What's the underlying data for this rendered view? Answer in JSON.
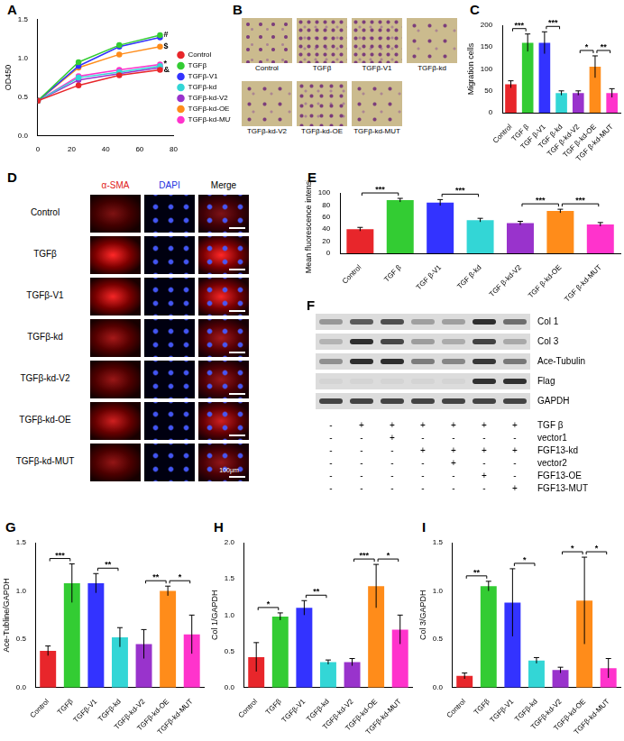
{
  "chart_data": [
    {
      "label": "A",
      "type": "line",
      "y_label": "OD450",
      "x": [
        0,
        24,
        48,
        72
      ],
      "xlim": [
        0,
        80
      ],
      "xticks": [
        0,
        20,
        40,
        60,
        80
      ],
      "ylim": [
        0,
        1.5
      ],
      "yticks": [
        {
          "value": 0,
          "label": "0.0"
        },
        {
          "value": 0.5,
          "label": "0.5"
        },
        {
          "value": 1,
          "label": "1.0"
        },
        {
          "value": 1.5,
          "label": "1.5"
        }
      ],
      "grid": false,
      "legend": "right",
      "marker": "circle",
      "series": [
        {
          "name": "Control",
          "color": "#e8262b",
          "values": [
            0.45,
            0.65,
            0.78,
            0.85
          ]
        },
        {
          "name": "TGFβ",
          "color": "#33cc33",
          "values": [
            0.45,
            0.95,
            1.17,
            1.3
          ]
        },
        {
          "name": "TGFβ-V1",
          "color": "#3333ff",
          "values": [
            0.45,
            0.9,
            1.15,
            1.27
          ]
        },
        {
          "name": "TGFβ-kd",
          "color": "#33d6d6",
          "values": [
            0.45,
            0.75,
            0.82,
            0.9
          ]
        },
        {
          "name": "TGFβ-kd-V2",
          "color": "#9933cc",
          "values": [
            0.45,
            0.72,
            0.8,
            0.88
          ]
        },
        {
          "name": "TGFβ-kd-OE",
          "color": "#ff8c1a",
          "values": [
            0.45,
            0.88,
            1.05,
            1.15
          ]
        },
        {
          "name": "TGFβ-kd-MUT",
          "color": "#ff33cc",
          "values": [
            0.45,
            0.77,
            0.85,
            0.92
          ]
        }
      ],
      "annotations": [
        {
          "text": "#",
          "x": 72,
          "y": 1.3
        },
        {
          "text": "$",
          "x": 72,
          "y": 1.15
        },
        {
          "text": "*",
          "x": 72,
          "y": 0.93
        },
        {
          "text": "&",
          "x": 72,
          "y": 0.85
        }
      ]
    },
    {
      "label": "C",
      "type": "bar",
      "y_label": "Migration cells",
      "categories": [
        "Control",
        "TGF β",
        "TGF β-V1",
        "TGF β-kd",
        "TGF β-kd-V2",
        "TGF β-kd-OE",
        "TGF β-kd-MUT"
      ],
      "values": [
        65,
        160,
        160,
        45,
        45,
        105,
        45
      ],
      "errors": [
        8,
        20,
        25,
        5,
        5,
        25,
        10
      ],
      "colors": [
        "#e8262b",
        "#33cc33",
        "#3333ff",
        "#33d6d6",
        "#9933cc",
        "#ff8c1a",
        "#ff33cc"
      ],
      "ylim": [
        0,
        200
      ],
      "yticks": [
        0,
        50,
        100,
        150,
        200
      ],
      "grid": false,
      "significance": [
        {
          "from": "Control",
          "to": "TGF β",
          "label": "***"
        },
        {
          "from": "TGF β-V1",
          "to": "TGF β-kd",
          "label": "***"
        },
        {
          "from": "TGF β-kd-V2",
          "to": "TGF β-kd-OE",
          "label": "*"
        },
        {
          "from": "TGF β-kd-OE",
          "to": "TGF β-kd-MUT",
          "label": "**"
        }
      ]
    },
    {
      "label": "E",
      "type": "bar",
      "y_label": "Mean fluorescence intensity",
      "categories": [
        "Control",
        "TGF β",
        "TGF β-V1",
        "TGF β-kd",
        "TGF β-kd-V2",
        "TGF β-kd-OE",
        "TGF β-kd-MUT"
      ],
      "values": [
        40,
        88,
        84,
        55,
        50,
        70,
        48
      ],
      "errors": [
        3,
        3,
        5,
        3,
        3,
        3,
        3
      ],
      "colors": [
        "#e8262b",
        "#33cc33",
        "#3333ff",
        "#33d6d6",
        "#9933cc",
        "#ff8c1a",
        "#ff33cc"
      ],
      "ylim": [
        0,
        100
      ],
      "yticks": [
        0,
        20,
        40,
        60,
        80,
        100
      ],
      "grid": false,
      "significance": [
        {
          "from": "Control",
          "to": "TGF β",
          "label": "***"
        },
        {
          "from": "TGF β-V1",
          "to": "TGF β-kd",
          "label": "***"
        },
        {
          "from": "TGF β-kd-V2",
          "to": "TGF β-kd-OE",
          "label": "***"
        },
        {
          "from": "TGF β-kd-OE",
          "to": "TGF β-kd-MUT",
          "label": "***"
        }
      ]
    },
    {
      "label": "G",
      "type": "bar",
      "y_label": "Ace-Tubline/GAPDH",
      "categories": [
        "Control",
        "TGFβ",
        "TGFβ-V1",
        "TGFβ-kd",
        "TGFβ-kd-V2",
        "TGFβ-kd-OE",
        "TGFβ-kd-MUT"
      ],
      "values": [
        0.38,
        1.08,
        1.08,
        0.52,
        0.45,
        1.0,
        0.55
      ],
      "errors": [
        0.05,
        0.2,
        0.1,
        0.1,
        0.15,
        0.05,
        0.2
      ],
      "colors": [
        "#e8262b",
        "#33cc33",
        "#3333ff",
        "#33d6d6",
        "#9933cc",
        "#ff8c1a",
        "#ff33cc"
      ],
      "ylim": [
        0,
        1.5
      ],
      "yticks": [
        {
          "value": 0,
          "label": "0.0"
        },
        {
          "value": 0.5,
          "label": "0.5"
        },
        {
          "value": 1,
          "label": "1.0"
        },
        {
          "value": 1.5,
          "label": "1.5"
        }
      ],
      "grid": false,
      "significance": [
        {
          "from": "Control",
          "to": "TGFβ",
          "label": "***"
        },
        {
          "from": "TGFβ-V1",
          "to": "TGFβ-kd",
          "label": "**"
        },
        {
          "from": "TGFβ-kd-V2",
          "to": "TGFβ-kd-OE",
          "label": "**"
        },
        {
          "from": "TGFβ-kd-OE",
          "to": "TGFβ-kd-MUT",
          "label": "*"
        }
      ]
    },
    {
      "label": "H",
      "type": "bar",
      "y_label": "Col 1/GAPDH",
      "categories": [
        "Control",
        "TGFβ",
        "TGFβ-V1",
        "TGFβ-kd",
        "TGFβ-kd-V2",
        "TGFβ-kd-OE",
        "TGFβ-kd-MUT"
      ],
      "values": [
        0.42,
        0.98,
        1.1,
        0.35,
        0.35,
        1.4,
        0.8
      ],
      "errors": [
        0.2,
        0.05,
        0.1,
        0.03,
        0.05,
        0.3,
        0.2
      ],
      "colors": [
        "#e8262b",
        "#33cc33",
        "#3333ff",
        "#33d6d6",
        "#9933cc",
        "#ff8c1a",
        "#ff33cc"
      ],
      "ylim": [
        0,
        2
      ],
      "yticks": [
        {
          "value": 0,
          "label": "0.0"
        },
        {
          "value": 0.5,
          "label": "0.5"
        },
        {
          "value": 1,
          "label": "1.0"
        },
        {
          "value": 1.5,
          "label": "1.5"
        },
        {
          "value": 2,
          "label": "2.0"
        }
      ],
      "grid": false,
      "significance": [
        {
          "from": "Control",
          "to": "TGFβ",
          "label": "*"
        },
        {
          "from": "TGFβ-V1",
          "to": "TGFβ-kd",
          "label": "**"
        },
        {
          "from": "TGFβ-kd-V2",
          "to": "TGFβ-kd-OE",
          "label": "***"
        },
        {
          "from": "TGFβ-kd-OE",
          "to": "TGFβ-kd-MUT",
          "label": "*"
        }
      ]
    },
    {
      "label": "I",
      "type": "bar",
      "y_label": "Col 3/GAPDH",
      "categories": [
        "Control",
        "TGFβ",
        "TGFβ-V1",
        "TGFβ-kd",
        "TGFβ-kd-V2",
        "TGFβ-kd-OE",
        "TGFβ-kd-MUT"
      ],
      "values": [
        0.12,
        1.05,
        0.88,
        0.28,
        0.18,
        0.9,
        0.2
      ],
      "errors": [
        0.03,
        0.05,
        0.35,
        0.03,
        0.03,
        0.45,
        0.1
      ],
      "colors": [
        "#e8262b",
        "#33cc33",
        "#3333ff",
        "#33d6d6",
        "#9933cc",
        "#ff8c1a",
        "#ff33cc"
      ],
      "ylim": [
        0,
        1.5
      ],
      "yticks": [
        {
          "value": 0,
          "label": "0.0"
        },
        {
          "value": 0.5,
          "label": "0.5"
        },
        {
          "value": 1,
          "label": "1.0"
        },
        {
          "value": 1.5,
          "label": "1.5"
        }
      ],
      "grid": false,
      "significance": [
        {
          "from": "Control",
          "to": "TGFβ",
          "label": "**"
        },
        {
          "from": "TGFβ-V1",
          "to": "TGFβ-kd",
          "label": "*"
        },
        {
          "from": "TGFβ-kd-V2",
          "to": "TGFβ-kd-OE",
          "label": "*"
        },
        {
          "from": "TGFβ-kd-OE",
          "to": "TGFβ-kd-MUT",
          "label": "*"
        }
      ]
    }
  ],
  "migration_images": {
    "label": "B",
    "captions": [
      "Control",
      "TGFβ",
      "TGFβ-V1",
      "TGFβ-kd",
      "TGFβ-kd-V2",
      "TGFβ-kd-OE",
      "TGFβ-kd-MUT"
    ]
  },
  "staining": {
    "label": "D",
    "columns": [
      "α-SMA",
      "DAPI",
      "Merge"
    ],
    "rows": [
      "Control",
      "TGFβ",
      "TGFβ-V1",
      "TGFβ-kd",
      "TGFβ-kd-V2",
      "TGFβ-kd-OE",
      "TGFβ-kd-MUT"
    ],
    "scale_bar": "100μm"
  },
  "blot": {
    "label": "F",
    "bands": [
      "Col 1",
      "Col 3",
      "Ace-Tubulin",
      "Flag",
      "GAPDH"
    ],
    "treatments": [
      {
        "name": "TGF β",
        "signs": [
          "-",
          "+",
          "+",
          "+",
          "+",
          "+",
          "+"
        ]
      },
      {
        "name": "vector1",
        "signs": [
          "-",
          "-",
          "+",
          "-",
          "-",
          "-",
          "-"
        ]
      },
      {
        "name": "FGF13-kd",
        "signs": [
          "-",
          "-",
          "-",
          "+",
          "+",
          "+",
          "+"
        ]
      },
      {
        "name": "vector2",
        "signs": [
          "-",
          "-",
          "-",
          "-",
          "+",
          "-",
          "-"
        ]
      },
      {
        "name": "FGF13-OE",
        "signs": [
          "-",
          "-",
          "-",
          "-",
          "-",
          "+",
          "-"
        ]
      },
      {
        "name": "FGF13-MUT",
        "signs": [
          "-",
          "-",
          "-",
          "-",
          "-",
          "-",
          "+"
        ]
      }
    ]
  }
}
